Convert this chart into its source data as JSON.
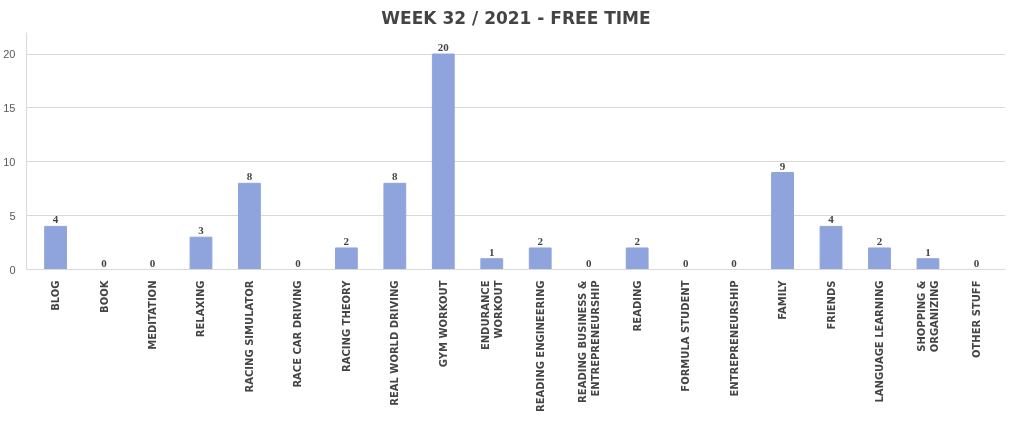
{
  "chart_data": {
    "type": "bar",
    "title": "WEEK 32 / 2021 - FREE TIME",
    "categories": [
      "BLOG",
      "BOOK",
      "MEDITATION",
      "RELAXING",
      "RACING SIMULATOR",
      "RACE CAR DRIVING",
      "RACING THEORY",
      "REAL WORLD DRIVING",
      "GYM WORKOUT",
      "ENDURANCE\nWORKOUT",
      "READING ENGINEERING",
      "READING BUSINESS &\nENTREPRENEURSHIP",
      "READING",
      "FORMULA STUDENT",
      "ENTREPRENEURSHIP",
      "FAMILY",
      "FRIENDS",
      "LANGUAGE LEARNING",
      "SHOPPING &\nORGANIZING",
      "OTHER STUFF"
    ],
    "values": [
      4,
      0,
      0,
      3,
      8,
      0,
      2,
      8,
      20,
      1,
      2,
      0,
      2,
      0,
      0,
      9,
      4,
      2,
      1,
      0
    ],
    "color": "#8fa4dc",
    "ylim": [
      0,
      22
    ],
    "yticks": [
      0,
      5,
      10,
      15,
      20
    ],
    "grid": "y",
    "data_labels": true
  }
}
